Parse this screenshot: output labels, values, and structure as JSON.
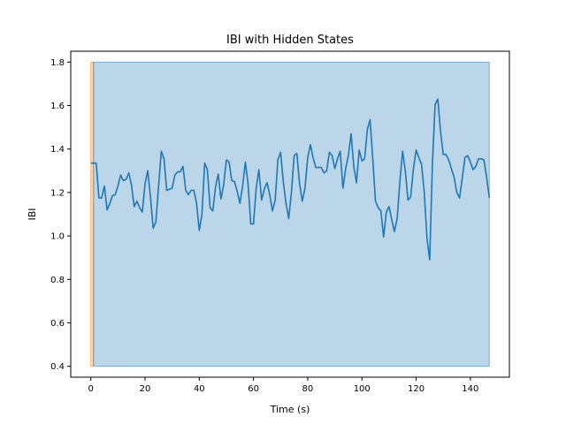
{
  "chart_data": {
    "type": "line",
    "title": "IBI with Hidden States",
    "xlabel": "Time (s)",
    "ylabel": "IBI",
    "xlim": [
      -7.4,
      154.4
    ],
    "ylim": [
      0.35,
      1.85
    ],
    "xticks": [
      0,
      20,
      40,
      60,
      80,
      100,
      120,
      140
    ],
    "yticks": [
      0.4,
      0.6,
      0.8,
      1.0,
      1.2,
      1.4,
      1.6,
      1.8
    ],
    "ytick_labels": [
      "0.4",
      "0.6",
      "0.8",
      "1.0",
      "1.2",
      "1.4",
      "1.6",
      "1.8"
    ],
    "grid": false,
    "states": [
      {
        "x_start": 0.0,
        "x_end": 1.0,
        "y_min": 0.4,
        "y_max": 1.8,
        "color": "#ff7f0e",
        "alpha": 0.3
      },
      {
        "x_start": 1.0,
        "x_end": 147.0,
        "y_min": 0.4,
        "y_max": 1.8,
        "color": "#1f77b4",
        "alpha": 0.3
      }
    ],
    "series": [
      {
        "color": "#1f77b4",
        "x": [
          0,
          1,
          2,
          3,
          4,
          5,
          6,
          7,
          8,
          9,
          10,
          11,
          12,
          13,
          14,
          15,
          16,
          17,
          18,
          19,
          20,
          21,
          22,
          23,
          24,
          25,
          26,
          27,
          28,
          29,
          30,
          31,
          32,
          33,
          34,
          35,
          36,
          37,
          38,
          39,
          40,
          41,
          42,
          43,
          44,
          45,
          46,
          47,
          48,
          49,
          50,
          51,
          52,
          53,
          54,
          55,
          56,
          57,
          58,
          59,
          60,
          61,
          62,
          63,
          64,
          65,
          66,
          67,
          68,
          69,
          70,
          71,
          72,
          73,
          74,
          75,
          76,
          77,
          78,
          79,
          80,
          81,
          82,
          83,
          84,
          85,
          86,
          87,
          88,
          89,
          90,
          91,
          92,
          93,
          94,
          95,
          96,
          97,
          98,
          99,
          100,
          101,
          102,
          103,
          104,
          105,
          106,
          107,
          108,
          109,
          110,
          111,
          112,
          113,
          114,
          115,
          116,
          117,
          118,
          119,
          120,
          121,
          122,
          123,
          124,
          125,
          126,
          127,
          128,
          129,
          130,
          131,
          132,
          133,
          134,
          135,
          136,
          137,
          138,
          139,
          140,
          141,
          142,
          143,
          144,
          145,
          146,
          147
        ],
        "y": [
          1.335,
          1.335,
          1.335,
          1.175,
          1.175,
          1.23,
          1.12,
          1.15,
          1.185,
          1.19,
          1.23,
          1.28,
          1.255,
          1.26,
          1.29,
          1.235,
          1.135,
          1.16,
          1.13,
          1.11,
          1.24,
          1.3,
          1.18,
          1.035,
          1.065,
          1.23,
          1.39,
          1.355,
          1.21,
          1.215,
          1.22,
          1.28,
          1.295,
          1.295,
          1.32,
          1.21,
          1.19,
          1.21,
          1.21,
          1.15,
          1.025,
          1.1,
          1.335,
          1.305,
          1.13,
          1.115,
          1.225,
          1.285,
          1.17,
          1.235,
          1.35,
          1.34,
          1.255,
          1.25,
          1.205,
          1.15,
          1.23,
          1.34,
          1.24,
          1.055,
          1.055,
          1.22,
          1.305,
          1.165,
          1.215,
          1.245,
          1.19,
          1.115,
          1.165,
          1.35,
          1.385,
          1.25,
          1.15,
          1.08,
          1.2,
          1.37,
          1.38,
          1.24,
          1.16,
          1.22,
          1.36,
          1.42,
          1.36,
          1.315,
          1.315,
          1.315,
          1.29,
          1.3,
          1.385,
          1.37,
          1.31,
          1.355,
          1.39,
          1.22,
          1.31,
          1.37,
          1.47,
          1.32,
          1.245,
          1.395,
          1.345,
          1.355,
          1.49,
          1.535,
          1.355,
          1.16,
          1.13,
          1.115,
          0.995,
          1.11,
          1.135,
          1.075,
          1.02,
          1.08,
          1.25,
          1.39,
          1.3,
          1.165,
          1.18,
          1.31,
          1.395,
          1.36,
          1.33,
          1.2,
          0.99,
          0.89,
          1.33,
          1.605,
          1.63,
          1.48,
          1.375,
          1.375,
          1.35,
          1.31,
          1.27,
          1.2,
          1.175,
          1.265,
          1.36,
          1.37,
          1.34,
          1.305,
          1.32,
          1.355,
          1.355,
          1.35,
          1.27,
          1.175
        ]
      }
    ]
  }
}
